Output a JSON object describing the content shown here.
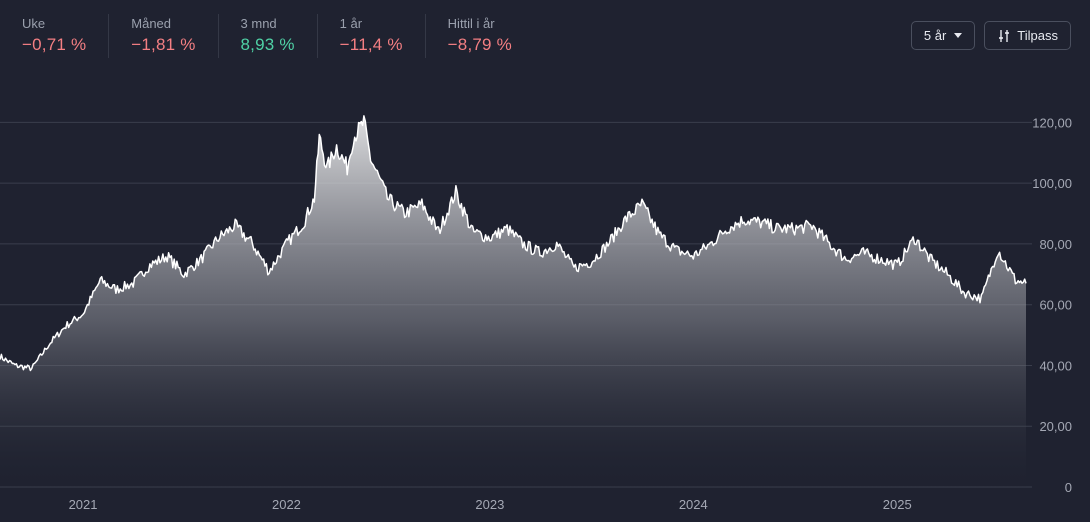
{
  "stats": [
    {
      "label": "Uke",
      "value": "−0,71 %",
      "trend": "neg"
    },
    {
      "label": "Måned",
      "value": "−1,81 %",
      "trend": "neg"
    },
    {
      "label": "3 mnd",
      "value": "8,93 %",
      "trend": "pos"
    },
    {
      "label": "1 år",
      "value": "−11,4 %",
      "trend": "neg"
    },
    {
      "label": "Hittil i år",
      "value": "−8,79 %",
      "trend": "neg"
    }
  ],
  "controls": {
    "period_label": "5 år",
    "customize_label": "Tilpass"
  },
  "colors": {
    "background": "#1f2230",
    "negative": "#f47f83",
    "positive": "#4fd1a5",
    "line": "#ffffff",
    "grid": "#3a3e4c"
  },
  "chart_data": {
    "type": "area",
    "title": "",
    "xlabel": "",
    "ylabel": "",
    "ylim": [
      0,
      130
    ],
    "yticks": [
      0,
      20,
      40,
      60,
      80,
      100,
      120
    ],
    "ytick_labels": [
      "0",
      "20,00",
      "40,00",
      "60,00",
      "80,00",
      "100,00",
      "120,00"
    ],
    "xticks": [
      {
        "x": "2021-01-01",
        "label": "2021"
      },
      {
        "x": "2022-01-01",
        "label": "2022"
      },
      {
        "x": "2023-01-01",
        "label": "2023"
      },
      {
        "x": "2024-01-01",
        "label": "2024"
      },
      {
        "x": "2025-01-01",
        "label": "2025"
      }
    ],
    "grid": true,
    "series": [
      {
        "x": [
          "2020-08-05",
          "2020-09-01",
          "2020-10-01",
          "2020-11-01",
          "2020-12-01",
          "2021-01-01",
          "2021-02-01",
          "2021-03-01",
          "2021-04-01",
          "2021-05-01",
          "2021-06-01",
          "2021-07-01",
          "2021-08-01",
          "2021-09-01",
          "2021-10-01",
          "2021-11-01",
          "2021-12-01",
          "2022-01-01",
          "2022-02-01",
          "2022-02-20",
          "2022-03-01",
          "2022-03-15",
          "2022-04-01",
          "2022-04-20",
          "2022-05-01",
          "2022-05-20",
          "2022-06-01",
          "2022-06-20",
          "2022-07-01",
          "2022-08-01",
          "2022-09-01",
          "2022-10-01",
          "2022-11-01",
          "2022-12-01",
          "2023-01-01",
          "2023-02-01",
          "2023-03-01",
          "2023-04-01",
          "2023-05-01",
          "2023-06-01",
          "2023-07-01",
          "2023-08-01",
          "2023-09-01",
          "2023-10-01",
          "2023-11-01",
          "2023-12-01",
          "2024-01-01",
          "2024-02-01",
          "2024-03-01",
          "2024-04-01",
          "2024-05-01",
          "2024-06-01",
          "2024-07-01",
          "2024-08-01",
          "2024-09-01",
          "2024-10-01",
          "2024-11-01",
          "2024-12-01",
          "2025-01-01",
          "2025-02-01",
          "2025-03-01",
          "2025-04-01",
          "2025-05-01",
          "2025-06-01",
          "2025-07-01",
          "2025-08-01",
          "2025-08-20"
        ],
        "values": [
          43,
          40,
          39,
          47,
          53,
          57,
          68,
          65,
          67,
          73,
          76,
          70,
          75,
          82,
          86,
          80,
          71,
          80,
          87,
          95,
          115,
          105,
          112,
          105,
          115,
          120,
          108,
          100,
          95,
          90,
          93,
          84,
          97,
          84,
          82,
          85,
          80,
          77,
          80,
          72,
          74,
          80,
          88,
          93,
          83,
          78,
          76,
          80,
          85,
          88,
          87,
          85,
          85,
          86,
          80,
          75,
          77,
          75,
          73,
          82,
          75,
          70,
          64,
          62,
          78,
          68,
          67
        ]
      }
    ]
  }
}
